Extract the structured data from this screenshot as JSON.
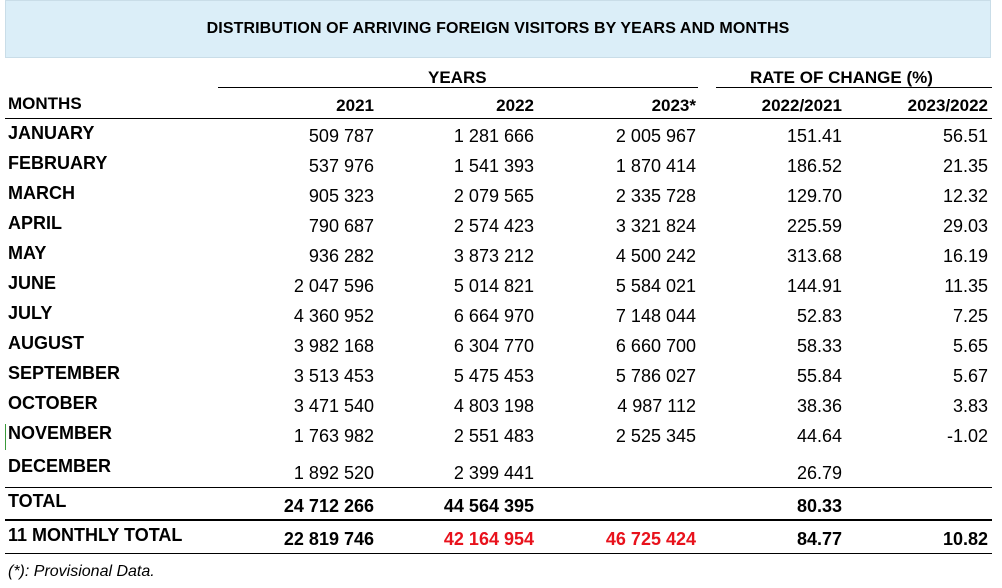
{
  "title": "DISTRIBUTION OF ARRIVING FOREIGN VISITORS BY YEARS AND MONTHS",
  "headers": {
    "years": "YEARS",
    "rate_of_change": "RATE OF CHANGE (%)",
    "months": "MONTHS",
    "y2021": "2021",
    "y2022": "2022",
    "y2023": "2023*",
    "r1": "2022/2021",
    "r2": "2023/2022"
  },
  "rows": [
    {
      "month": "JANUARY",
      "y2021": "509 787",
      "y2022": "1 281 666",
      "y2023": "2 005 967",
      "r1": "151.41",
      "r2": "56.51"
    },
    {
      "month": "FEBRUARY",
      "y2021": "537 976",
      "y2022": "1 541 393",
      "y2023": "1 870 414",
      "r1": "186.52",
      "r2": "21.35"
    },
    {
      "month": "MARCH",
      "y2021": "905 323",
      "y2022": "2 079 565",
      "y2023": "2 335 728",
      "r1": "129.70",
      "r2": "12.32"
    },
    {
      "month": "APRIL",
      "y2021": "790 687",
      "y2022": "2 574 423",
      "y2023": "3 321 824",
      "r1": "225.59",
      "r2": "29.03"
    },
    {
      "month": "MAY",
      "y2021": "936 282",
      "y2022": "3 873 212",
      "y2023": "4 500 242",
      "r1": "313.68",
      "r2": "16.19"
    },
    {
      "month": "JUNE",
      "y2021": "2 047 596",
      "y2022": "5 014 821",
      "y2023": "5 584 021",
      "r1": "144.91",
      "r2": "11.35"
    },
    {
      "month": "JULY",
      "y2021": "4 360 952",
      "y2022": "6 664 970",
      "y2023": "7 148 044",
      "r1": "52.83",
      "r2": "7.25"
    },
    {
      "month": "AUGUST",
      "y2021": "3 982 168",
      "y2022": "6 304 770",
      "y2023": "6 660 700",
      "r1": "58.33",
      "r2": "5.65"
    },
    {
      "month": "SEPTEMBER",
      "y2021": "3 513 453",
      "y2022": "5 475 453",
      "y2023": "5 786 027",
      "r1": "55.84",
      "r2": "5.67"
    },
    {
      "month": "OCTOBER",
      "y2021": "3 471 540",
      "y2022": "4 803 198",
      "y2023": "4 987 112",
      "r1": "38.36",
      "r2": "3.83"
    },
    {
      "month": "NOVEMBER",
      "y2021": "1 763 982",
      "y2022": "2 551 483",
      "y2023": "2 525 345",
      "r1": "44.64",
      "r2": "-1.02"
    },
    {
      "month": "DECEMBER",
      "y2021": "1 892 520",
      "y2022": "2 399 441",
      "y2023": "",
      "r1": "26.79",
      "r2": ""
    }
  ],
  "total": {
    "label": "TOTAL",
    "y2021": "24 712 266",
    "y2022": "44 564 395",
    "y2023": "",
    "r1": "80.33",
    "r2": ""
  },
  "monthly_total": {
    "label": "11 MONTHLY TOTAL",
    "y2021": "22 819 746",
    "y2022": "42 164 954",
    "y2023": "46 725 424",
    "r1": "84.77",
    "r2": "10.82"
  },
  "footnote": "(*): Provisional Data.",
  "colors": {
    "banner": "#dbeef8",
    "highlight": "#e8121c"
  }
}
